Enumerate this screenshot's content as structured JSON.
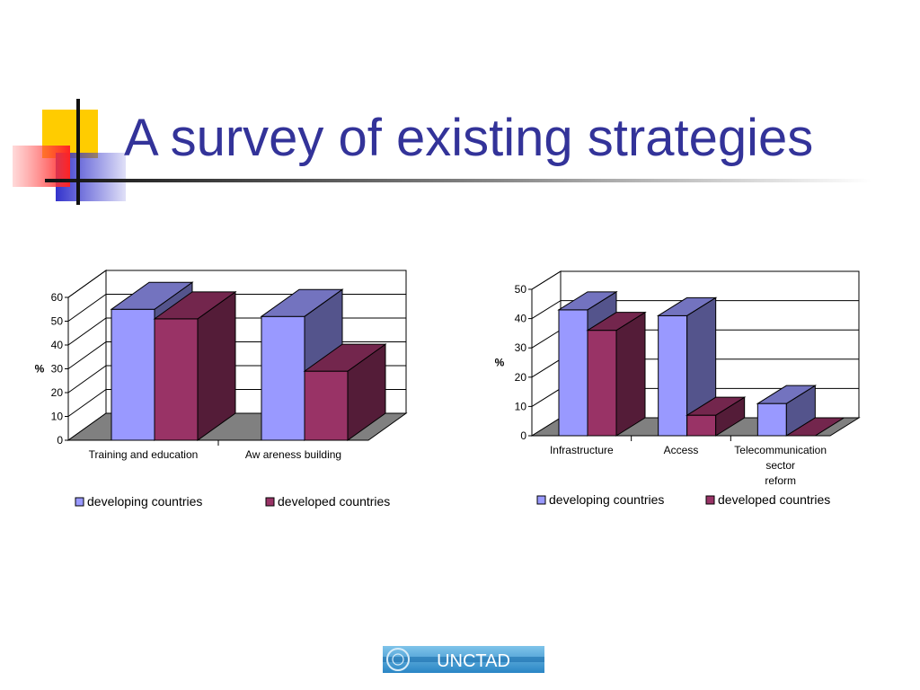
{
  "slide": {
    "title": "A survey of existing strategies",
    "logo_text": "UNCTAD",
    "colors": {
      "title": "#333399",
      "accent_yellow": "#FFCC00",
      "accent_red": "#FF3333",
      "accent_blue": "#3333CC"
    }
  },
  "chart_data": [
    {
      "type": "bar",
      "title": "",
      "xlabel": "",
      "ylabel": "%",
      "ylim": [
        0,
        60
      ],
      "yticks": [
        0,
        10,
        20,
        30,
        40,
        50,
        60
      ],
      "categories": [
        "Training and education",
        "Aw areness building"
      ],
      "series": [
        {
          "name": "developing countries",
          "values": [
            55,
            52
          ],
          "color": "#9999FF"
        },
        {
          "name": "developed countries",
          "values": [
            51,
            29
          ],
          "color": "#993366"
        }
      ],
      "grid": true,
      "legend": "bottom",
      "style": "3d-clustered-column"
    },
    {
      "type": "bar",
      "title": "",
      "xlabel": "",
      "ylabel": "%",
      "ylim": [
        0,
        50
      ],
      "yticks": [
        0,
        10,
        20,
        30,
        40,
        50
      ],
      "categories": [
        "Infrastructure",
        "Access",
        "Telecommunication sector reform"
      ],
      "series": [
        {
          "name": "developing countries",
          "values": [
            43,
            41,
            11
          ],
          "color": "#9999FF"
        },
        {
          "name": "developed countries",
          "values": [
            36,
            7,
            0
          ],
          "color": "#993366"
        }
      ],
      "grid": true,
      "legend": "bottom",
      "style": "3d-clustered-column"
    }
  ]
}
